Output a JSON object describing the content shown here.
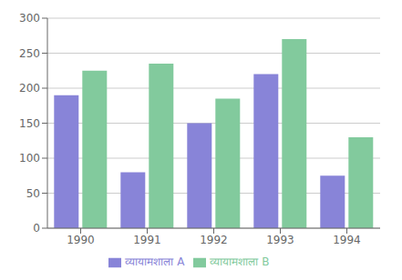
{
  "chart_data": {
    "type": "bar",
    "categories": [
      "1990",
      "1991",
      "1992",
      "1993",
      "1994"
    ],
    "series": [
      {
        "name": "व्यायामशाला A",
        "color": "#8884d8",
        "values": [
          190,
          80,
          150,
          220,
          75
        ]
      },
      {
        "name": "व्यायामशाला B",
        "color": "#82ca9d",
        "values": [
          225,
          235,
          185,
          270,
          130
        ]
      }
    ],
    "ylim": [
      0,
      300
    ],
    "yticks": [
      0,
      50,
      100,
      150,
      200,
      250,
      300
    ],
    "grid": true,
    "legend": "bottom"
  }
}
